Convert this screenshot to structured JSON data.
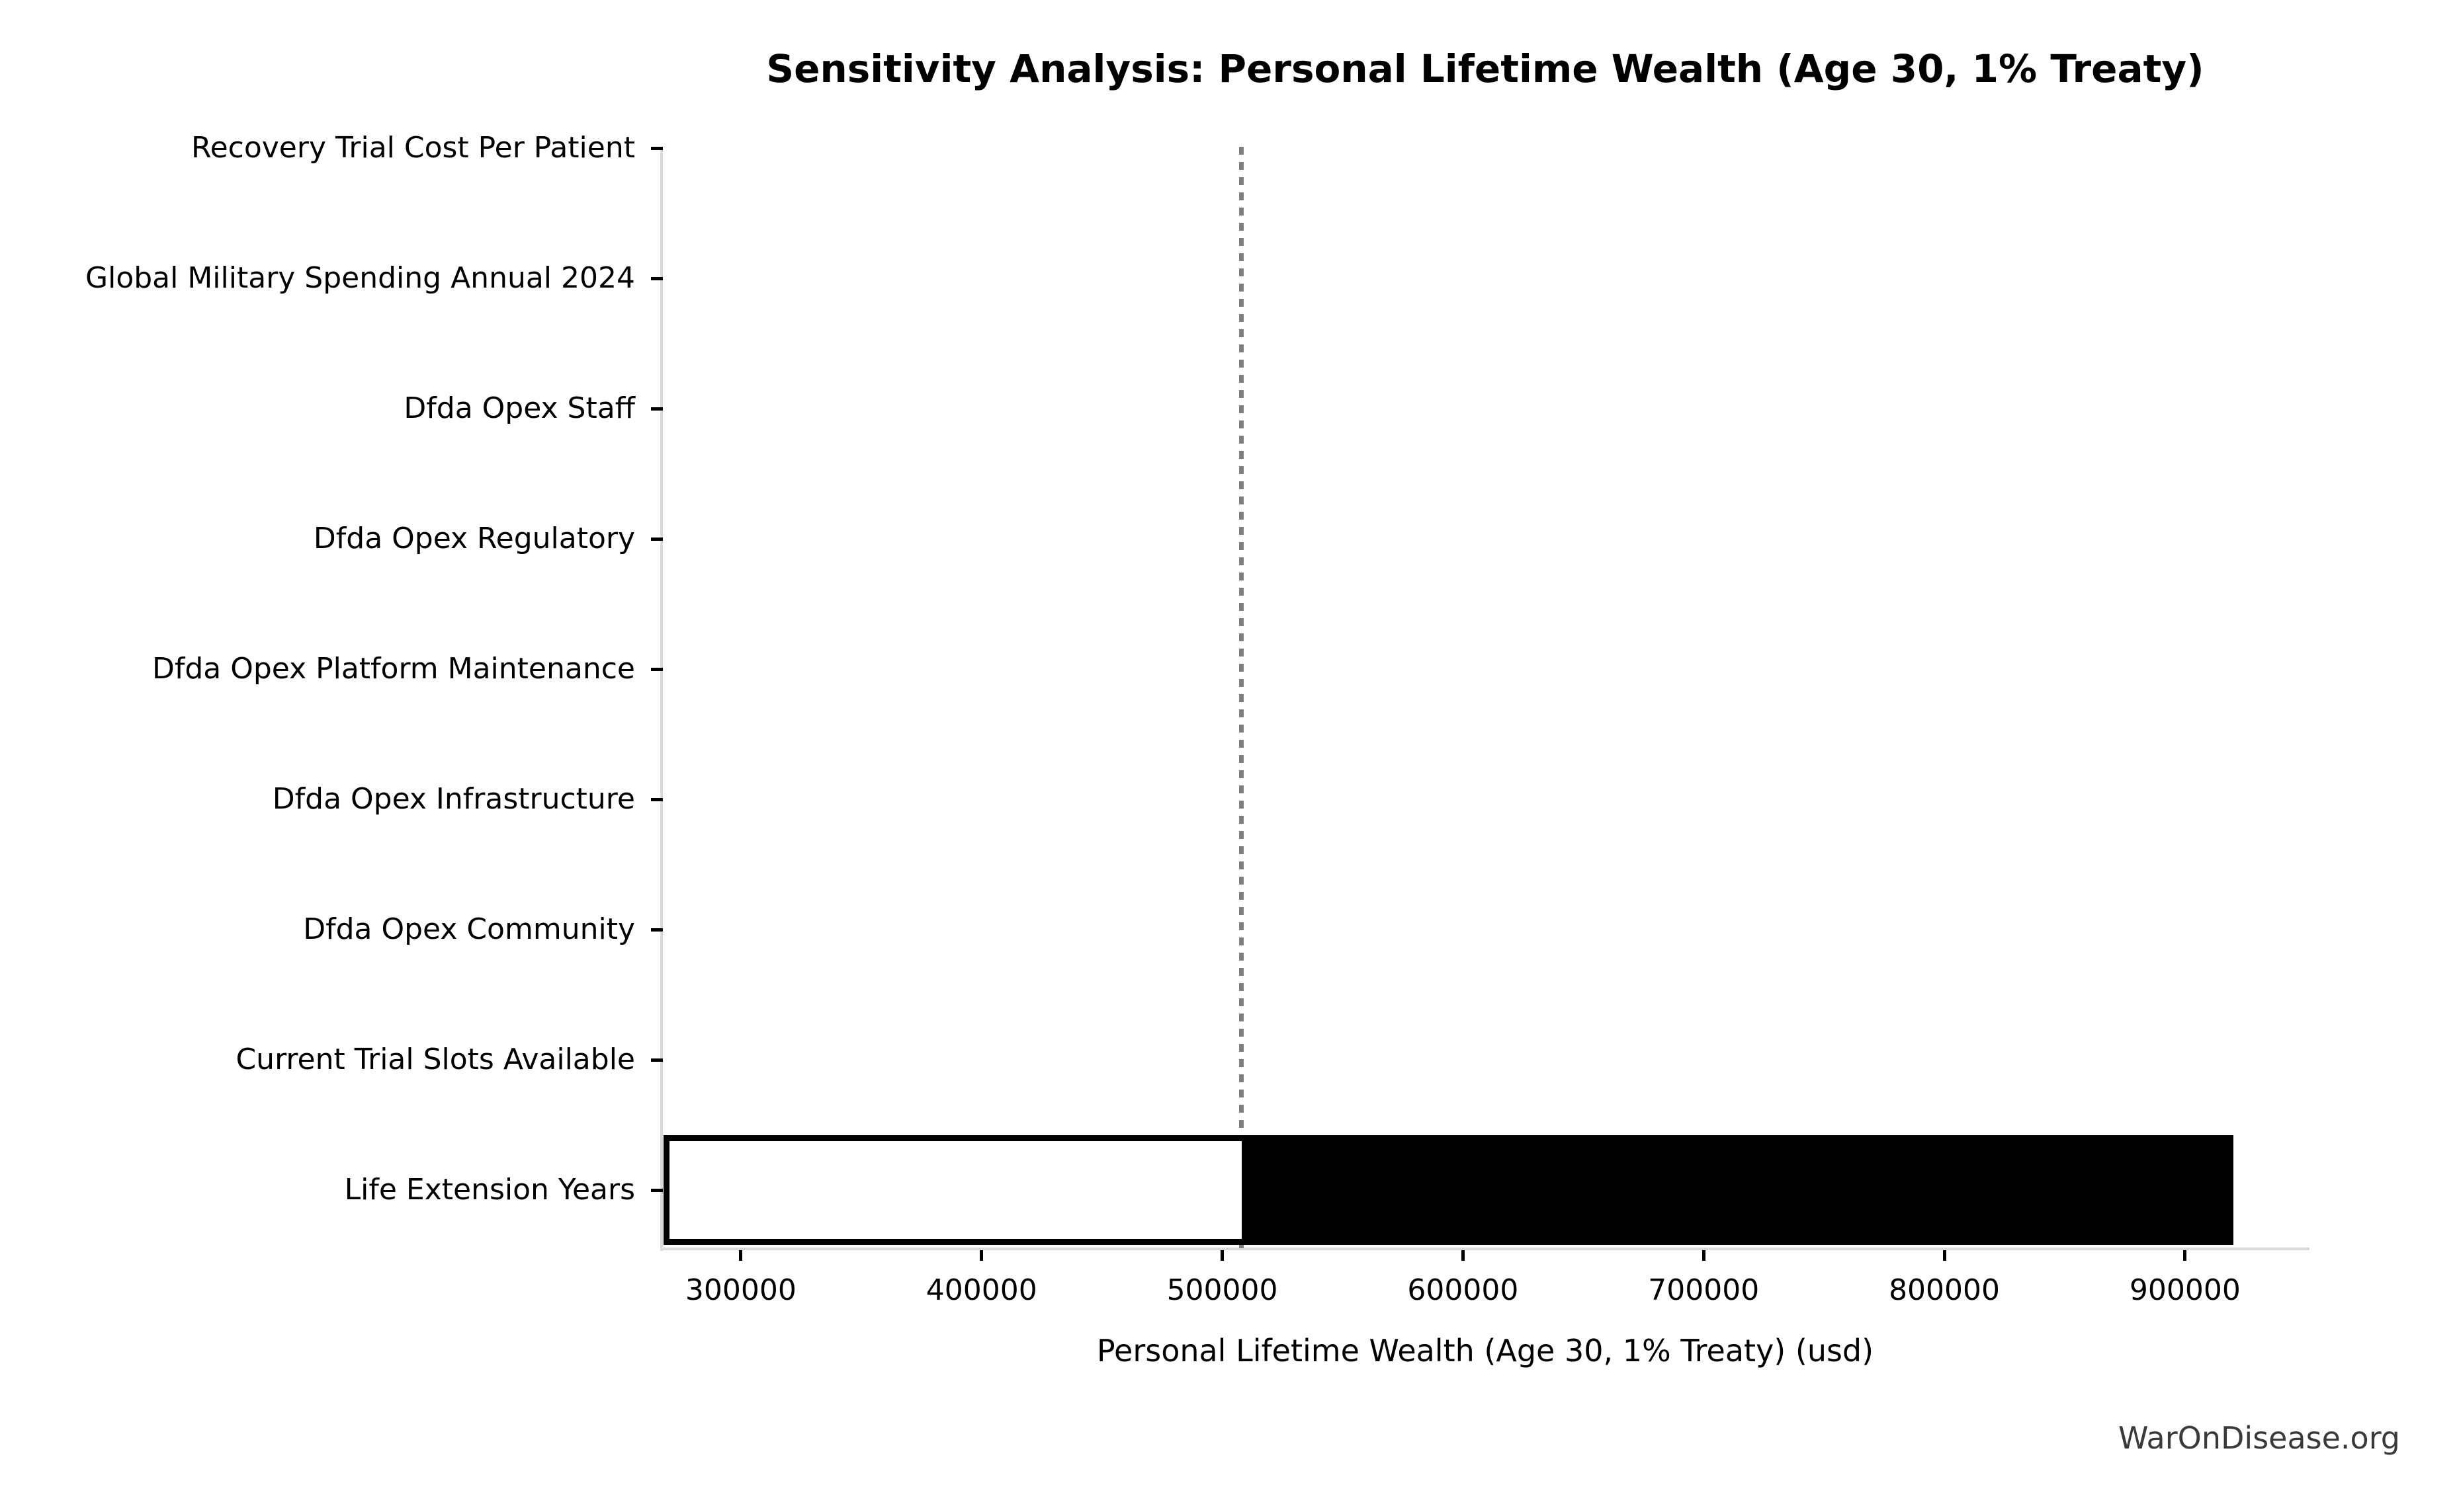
{
  "watermark": "WarOnDisease.org",
  "chart_data": {
    "type": "bar",
    "subtype": "tornado-sensitivity",
    "orientation": "horizontal",
    "title": "Sensitivity Analysis: Personal Lifetime Wealth (Age 30, 1% Treaty)",
    "xlabel": "Personal Lifetime Wealth (Age 30, 1% Treaty) (usd)",
    "ylabel": "",
    "categories": [
      "Recovery Trial Cost Per Patient",
      "Global Military Spending Annual 2024",
      "Dfda Opex Staff",
      "Dfda Opex Regulatory",
      "Dfda Opex Platform Maintenance",
      "Dfda Opex Infrastructure",
      "Dfda Opex Community",
      "Current Trial Slots Available",
      "Life Extension Years"
    ],
    "rows": [
      {
        "label": "Recovery Trial Cost Per Patient",
        "low": null,
        "high": null
      },
      {
        "label": "Global Military Spending Annual 2024",
        "low": null,
        "high": null
      },
      {
        "label": "Dfda Opex Staff",
        "low": null,
        "high": null
      },
      {
        "label": "Dfda Opex Regulatory",
        "low": null,
        "high": null
      },
      {
        "label": "Dfda Opex Platform Maintenance",
        "low": null,
        "high": null
      },
      {
        "label": "Dfda Opex Infrastructure",
        "low": null,
        "high": null
      },
      {
        "label": "Dfda Opex Community",
        "low": null,
        "high": null
      },
      {
        "label": "Current Trial Slots Available",
        "low": null,
        "high": null
      },
      {
        "label": "Life Extension Years",
        "low": 268000,
        "high": 920000
      }
    ],
    "baseline_value": 508000,
    "xlim": [
      266500,
      951700
    ],
    "xticks": [
      300000,
      400000,
      500000,
      600000,
      700000,
      800000,
      900000
    ],
    "grid": false,
    "legend": false,
    "colors": {
      "bar_below_baseline_fill": "#ffffff",
      "bar_above_baseline_fill": "#000000",
      "bar_edge": "#000000",
      "baseline_line": "#7f7f7f",
      "spine": "#d9d9d9",
      "text": "#000000",
      "watermark": "#3a3a3a"
    }
  }
}
